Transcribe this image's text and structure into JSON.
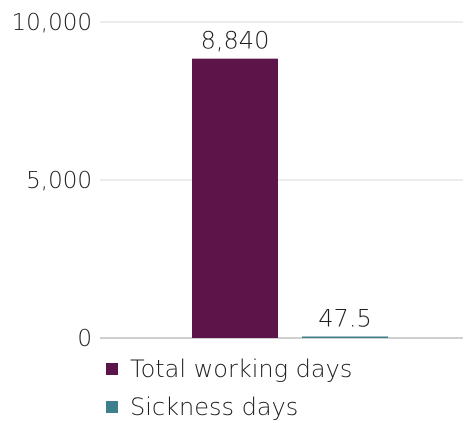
{
  "chart_data": {
    "type": "bar",
    "categories": [
      ""
    ],
    "series": [
      {
        "name": "Total working days",
        "values": [
          8840
        ],
        "color": "#5c1449",
        "label": "8,840"
      },
      {
        "name": "Sickness days",
        "values": [
          47.5
        ],
        "color": "#3d7f8a",
        "label": "47.5"
      }
    ],
    "ylim": [
      0,
      10000
    ],
    "yticks": [
      0,
      5000,
      10000
    ],
    "ytick_labels": [
      "0",
      "5,000",
      "10,000"
    ],
    "grid": true,
    "legend_position": "bottom",
    "title": "",
    "xlabel": "",
    "ylabel": ""
  }
}
